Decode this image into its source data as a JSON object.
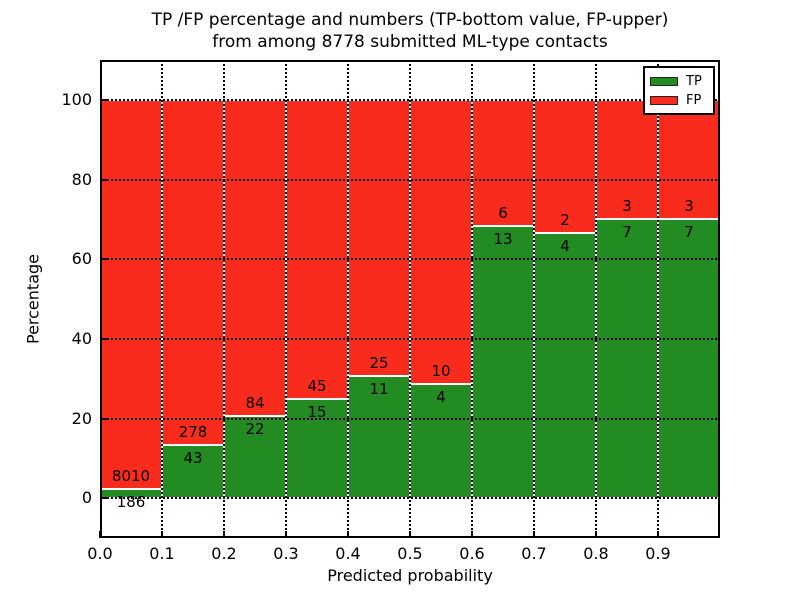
{
  "title": {
    "line1": "TP /FP percentage and numbers (TP-bottom value, FP-upper)",
    "line2": "from among 8778 submitted ML-type contacts"
  },
  "legend": {
    "position": "upper right",
    "items": [
      {
        "label": "TP",
        "color": "#228b22"
      },
      {
        "label": "FP",
        "color": "#f92b1d"
      }
    ]
  },
  "colors": {
    "tp_green": "#228b22",
    "fp_red": "#f92b1d",
    "background": "#ffffff",
    "spine": "#000000",
    "grid": "#000000",
    "bar_edge": "#ffffff"
  },
  "chart_data": {
    "type": "bar",
    "stacked": true,
    "title": "TP /FP percentage and numbers (TP-bottom value, FP-upper)\nfrom among 8778 submitted ML-type contacts",
    "xlabel": "Predicted probability",
    "ylabel": "Percentage",
    "xlim": [
      0.0,
      1.0
    ],
    "ylim": [
      -10,
      110
    ],
    "grid": true,
    "legend_position": "upper right",
    "total_contacts": 8778,
    "bin_edges": [
      0.0,
      0.1,
      0.2,
      0.3,
      0.4,
      0.5,
      0.6,
      0.7,
      0.8,
      0.9,
      1.0
    ],
    "categories": [
      "0.0-0.1",
      "0.1-0.2",
      "0.2-0.3",
      "0.3-0.4",
      "0.4-0.5",
      "0.5-0.6",
      "0.6-0.7",
      "0.7-0.8",
      "0.8-0.9",
      "0.9-1.0"
    ],
    "xtick_labels": [
      "0.0",
      "0.1",
      "0.2",
      "0.3",
      "0.4",
      "0.5",
      "0.6",
      "0.7",
      "0.8",
      "0.9"
    ],
    "yticks": [
      0,
      20,
      40,
      60,
      80,
      100
    ],
    "series": [
      {
        "name": "TP",
        "color": "#228b22",
        "counts": [
          186,
          43,
          22,
          15,
          11,
          4,
          13,
          4,
          7,
          7
        ],
        "percent": [
          2.27,
          13.4,
          20.75,
          25.0,
          30.56,
          28.57,
          68.42,
          66.67,
          70.0,
          70.0
        ]
      },
      {
        "name": "FP",
        "color": "#f92b1d",
        "counts": [
          8010,
          278,
          84,
          45,
          25,
          10,
          6,
          2,
          3,
          3
        ],
        "percent": [
          97.73,
          86.6,
          79.25,
          75.0,
          69.44,
          71.43,
          31.58,
          33.33,
          30.0,
          30.0
        ]
      }
    ]
  }
}
